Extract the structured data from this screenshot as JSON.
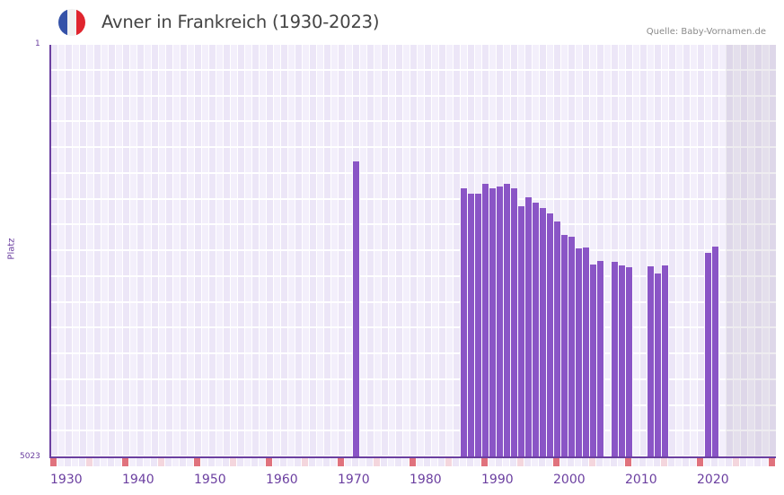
{
  "header": {
    "title": "Avner in Frankreich (1930-2023)",
    "source": "Quelle: Baby-Vornamen.de",
    "flag_colors": [
      "#3552a8",
      "#f1f1f1",
      "#e0252e"
    ]
  },
  "axis": {
    "y_label": "Platz",
    "y_top": "1",
    "y_bottom": "5023",
    "x_ticks": [
      "1930",
      "1940",
      "1950",
      "1960",
      "1970",
      "1980",
      "1990",
      "2000",
      "2010",
      "2020"
    ]
  },
  "colors": {
    "bar": "#8a55c6",
    "axis": "#6b3fa0",
    "decade_marker": "#e0727d",
    "half_decade_marker": "#f4d6dd",
    "grid_a": "#f3effb",
    "grid_b": "#ece6f7"
  },
  "chart_data": {
    "type": "bar",
    "title": "Avner in Frankreich (1930-2023)",
    "xlabel": "",
    "ylabel": "Platz",
    "y_inverted": true,
    "ylim": [
      1,
      5023
    ],
    "x_range": [
      1930,
      2030
    ],
    "data_range_end": 2023,
    "grid": true,
    "x": [
      1972,
      1987,
      1988,
      1989,
      1990,
      1991,
      1992,
      1993,
      1994,
      1995,
      1996,
      1997,
      1998,
      1999,
      2000,
      2001,
      2002,
      2003,
      2004,
      2005,
      2006,
      2008,
      2009,
      2010,
      2013,
      2014,
      2015,
      2021,
      2022
    ],
    "values": [
      1415,
      1743,
      1808,
      1808,
      1688,
      1743,
      1721,
      1688,
      1743,
      1961,
      1852,
      1918,
      1983,
      2049,
      2147,
      2311,
      2333,
      2475,
      2464,
      2672,
      2628,
      2639,
      2682,
      2704,
      2693,
      2780,
      2682,
      2529,
      2453
    ]
  }
}
